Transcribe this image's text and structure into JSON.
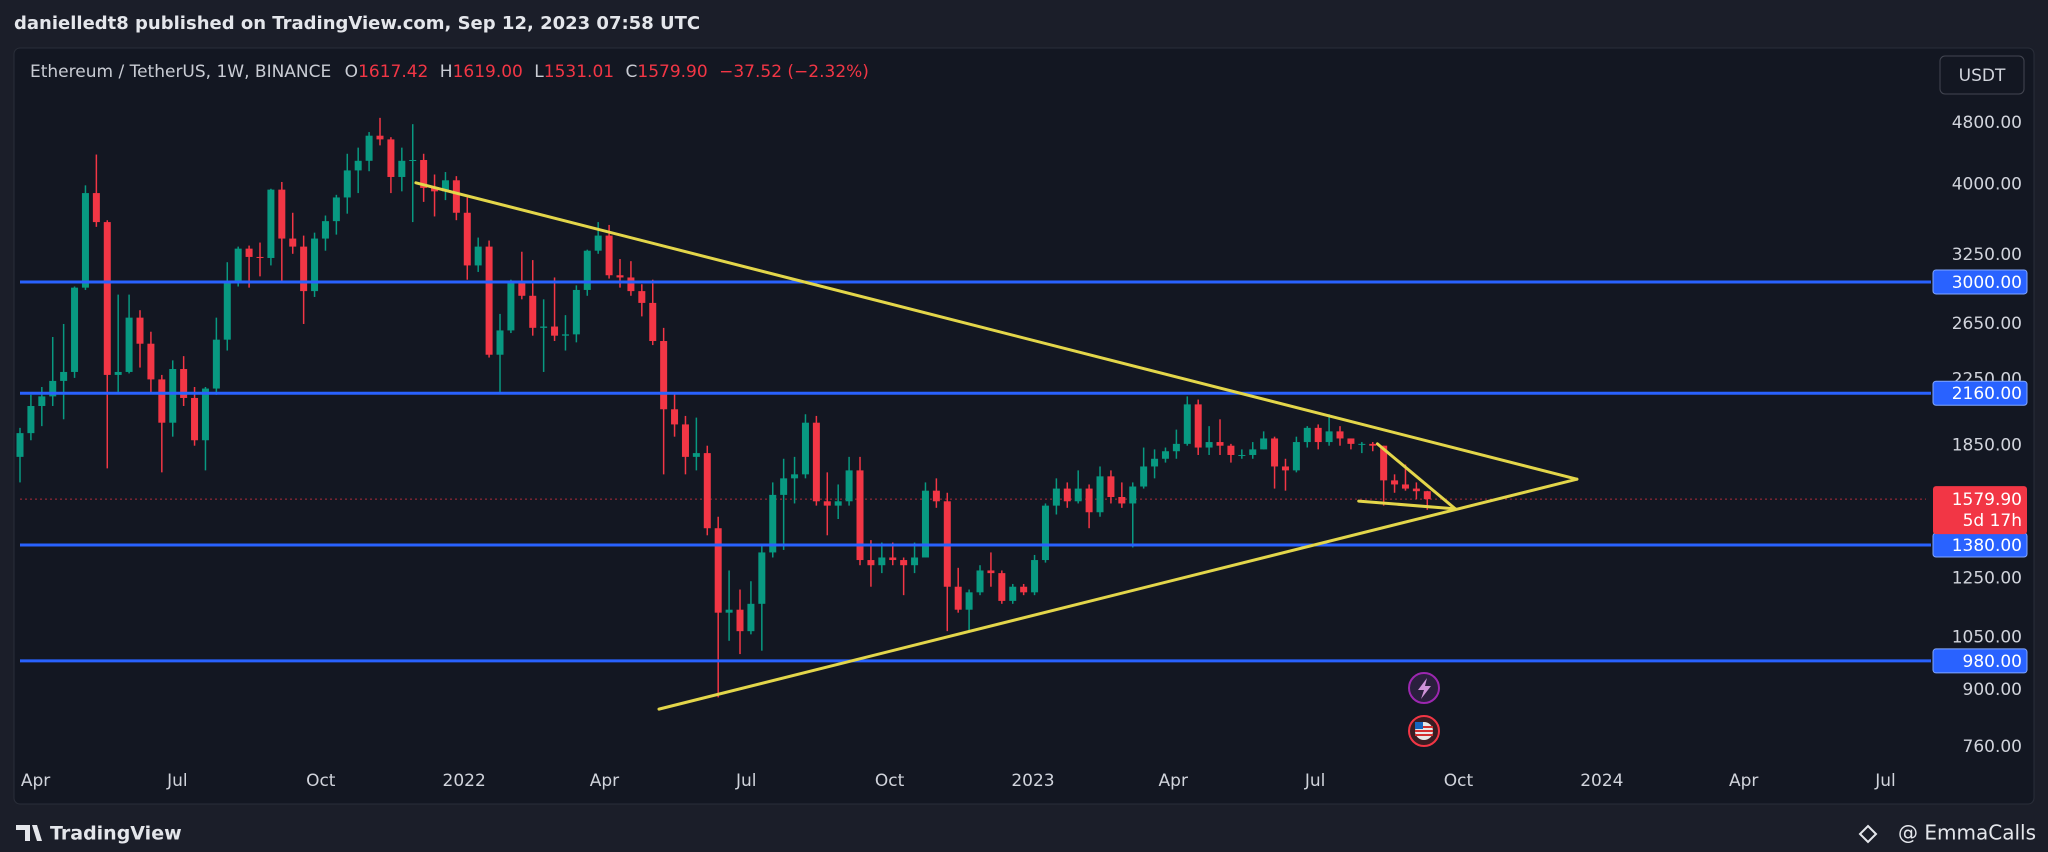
{
  "header": "danielledt8 published on TradingView.com, Sep 12, 2023 07:58 UTC",
  "footer": "TradingView",
  "watermark": "@ EmmaCalls",
  "chart_data": {
    "type": "candlestick",
    "title": "Ethereum / TetherUS, 1W, BINANCE",
    "currency_button": "USDT",
    "legend": {
      "keys": [
        "O",
        "H",
        "L",
        "C"
      ],
      "values": [
        "1617.42",
        "1619.00",
        "1531.01",
        "1579.90"
      ],
      "change": "−37.52 (−2.32%)"
    },
    "up_color": "#089981",
    "down_color": "#f23645",
    "log_scale": true,
    "grid": false,
    "xlim": [
      "2021-03-22",
      "2024-07-27"
    ],
    "xticks": [
      {
        "value": "2021-04-01",
        "label": "Apr"
      },
      {
        "value": "2021-07-01",
        "label": "Jul"
      },
      {
        "value": "2021-10-01",
        "label": "Oct"
      },
      {
        "value": "2022-01-01",
        "label": "2022"
      },
      {
        "value": "2022-04-01",
        "label": "Apr"
      },
      {
        "value": "2022-07-01",
        "label": "Jul"
      },
      {
        "value": "2022-10-01",
        "label": "Oct"
      },
      {
        "value": "2023-01-01",
        "label": "2023"
      },
      {
        "value": "2023-04-01",
        "label": "Apr"
      },
      {
        "value": "2023-07-01",
        "label": "Jul"
      },
      {
        "value": "2023-10-01",
        "label": "Oct"
      },
      {
        "value": "2024-01-01",
        "label": "2024"
      },
      {
        "value": "2024-04-01",
        "label": "Apr"
      },
      {
        "value": "2024-07-01",
        "label": "Jul"
      }
    ],
    "ylim": [
      650,
      5950
    ],
    "yticks": [
      {
        "value": 4800,
        "label": "4800.00"
      },
      {
        "value": 4000,
        "label": "4000.00"
      },
      {
        "value": 3250,
        "label": "3250.00"
      },
      {
        "value": 2650,
        "label": "2650.00"
      },
      {
        "value": 2250,
        "label": "2250.00"
      },
      {
        "value": 1850,
        "label": "1850.00"
      },
      {
        "value": 1250,
        "label": "1250.00"
      },
      {
        "value": 1050,
        "label": "1050.00"
      },
      {
        "value": 900,
        "label": "900.00"
      },
      {
        "value": 760,
        "label": "760.00"
      }
    ],
    "hlines": {
      "color": "#2962ff",
      "levels": [
        {
          "value": 3000,
          "label": "3000.00"
        },
        {
          "value": 2160,
          "label": "2160.00"
        },
        {
          "value": 1380,
          "label": "1380.00"
        },
        {
          "value": 980,
          "label": "980.00"
        }
      ]
    },
    "last_price": {
      "value": 1579.9,
      "label": "1579.90",
      "countdown": "5d 17h"
    },
    "trendlines": {
      "color": "#e3d64a",
      "lines": [
        [
          [
            "2021-12-01",
            4020
          ],
          [
            "2023-12-16",
            1676
          ]
        ],
        [
          [
            "2022-05-06",
            850
          ],
          [
            "2023-12-16",
            1676
          ]
        ],
        [
          [
            "2023-08-10",
            1860
          ],
          [
            "2023-09-29",
            1535
          ]
        ],
        [
          [
            "2023-07-29",
            1571
          ],
          [
            "2023-09-29",
            1535
          ]
        ]
      ]
    },
    "x": [
      "2021-03-22",
      "2021-03-29",
      "2021-04-05",
      "2021-04-12",
      "2021-04-19",
      "2021-04-26",
      "2021-05-03",
      "2021-05-10",
      "2021-05-17",
      "2021-05-24",
      "2021-05-31",
      "2021-06-07",
      "2021-06-14",
      "2021-06-21",
      "2021-06-28",
      "2021-07-05",
      "2021-07-12",
      "2021-07-19",
      "2021-07-26",
      "2021-08-02",
      "2021-08-09",
      "2021-08-16",
      "2021-08-23",
      "2021-08-30",
      "2021-09-06",
      "2021-09-13",
      "2021-09-20",
      "2021-09-27",
      "2021-10-04",
      "2021-10-11",
      "2021-10-18",
      "2021-10-25",
      "2021-11-01",
      "2021-11-08",
      "2021-11-15",
      "2021-11-22",
      "2021-11-29",
      "2021-12-06",
      "2021-12-13",
      "2021-12-20",
      "2021-12-27",
      "2022-01-03",
      "2022-01-10",
      "2022-01-17",
      "2022-01-24",
      "2022-01-31",
      "2022-02-07",
      "2022-02-14",
      "2022-02-21",
      "2022-02-28",
      "2022-03-07",
      "2022-03-14",
      "2022-03-21",
      "2022-03-28",
      "2022-04-04",
      "2022-04-11",
      "2022-04-18",
      "2022-04-25",
      "2022-05-02",
      "2022-05-09",
      "2022-05-16",
      "2022-05-23",
      "2022-05-30",
      "2022-06-06",
      "2022-06-13",
      "2022-06-20",
      "2022-06-27",
      "2022-07-04",
      "2022-07-11",
      "2022-07-18",
      "2022-07-25",
      "2022-08-01",
      "2022-08-08",
      "2022-08-15",
      "2022-08-22",
      "2022-08-29",
      "2022-09-05",
      "2022-09-12",
      "2022-09-19",
      "2022-09-26",
      "2022-10-03",
      "2022-10-10",
      "2022-10-17",
      "2022-10-24",
      "2022-10-31",
      "2022-11-07",
      "2022-11-14",
      "2022-11-21",
      "2022-11-28",
      "2022-12-05",
      "2022-12-12",
      "2022-12-19",
      "2022-12-26",
      "2023-01-02",
      "2023-01-09",
      "2023-01-16",
      "2023-01-23",
      "2023-01-30",
      "2023-02-06",
      "2023-02-13",
      "2023-02-20",
      "2023-02-27",
      "2023-03-06",
      "2023-03-13",
      "2023-03-20",
      "2023-03-27",
      "2023-04-03",
      "2023-04-10",
      "2023-04-17",
      "2023-04-24",
      "2023-05-01",
      "2023-05-08",
      "2023-05-15",
      "2023-05-22",
      "2023-05-29",
      "2023-06-05",
      "2023-06-12",
      "2023-06-19",
      "2023-06-26",
      "2023-07-03",
      "2023-07-10",
      "2023-07-17",
      "2023-07-24",
      "2023-07-31",
      "2023-08-07",
      "2023-08-14",
      "2023-08-21",
      "2023-08-28",
      "2023-09-04",
      "2023-09-11"
    ],
    "candles": [
      [
        1790,
        1950,
        1660,
        1920
      ],
      [
        1920,
        2150,
        1880,
        2080
      ],
      [
        2080,
        2200,
        1960,
        2140
      ],
      [
        2140,
        2550,
        2080,
        2240
      ],
      [
        2240,
        2650,
        2000,
        2300
      ],
      [
        2300,
        2960,
        2260,
        2950
      ],
      [
        2950,
        3990,
        2930,
        3900
      ],
      [
        3900,
        4370,
        3530,
        3580
      ],
      [
        3580,
        3600,
        1730,
        2280
      ],
      [
        2280,
        2890,
        2160,
        2300
      ],
      [
        2300,
        2890,
        2290,
        2700
      ],
      [
        2700,
        2760,
        2330,
        2500
      ],
      [
        2500,
        2590,
        2160,
        2250
      ],
      [
        2250,
        2280,
        1710,
        1980
      ],
      [
        1980,
        2380,
        1900,
        2320
      ],
      [
        2320,
        2410,
        2080,
        2130
      ],
      [
        2130,
        2200,
        1850,
        1880
      ],
      [
        1880,
        2200,
        1720,
        2190
      ],
      [
        2190,
        2700,
        2150,
        2530
      ],
      [
        2530,
        3180,
        2450,
        3010
      ],
      [
        3010,
        3330,
        2960,
        3310
      ],
      [
        3310,
        3340,
        2950,
        3230
      ],
      [
        3230,
        3370,
        3050,
        3220
      ],
      [
        3220,
        3950,
        3150,
        3940
      ],
      [
        3940,
        4030,
        3010,
        3410
      ],
      [
        3410,
        3680,
        3260,
        3330
      ],
      [
        3330,
        3440,
        2650,
        2920
      ],
      [
        2920,
        3470,
        2870,
        3410
      ],
      [
        3410,
        3650,
        3290,
        3590
      ],
      [
        3590,
        3880,
        3450,
        3850
      ],
      [
        3850,
        4380,
        3670,
        4170
      ],
      [
        4170,
        4460,
        3900,
        4290
      ],
      [
        4290,
        4670,
        4160,
        4620
      ],
      [
        4620,
        4870,
        4490,
        4570
      ],
      [
        4570,
        4600,
        3900,
        4090
      ],
      [
        4090,
        4460,
        3920,
        4290
      ],
      [
        4290,
        4780,
        3580,
        4300
      ],
      [
        4300,
        4380,
        3800,
        3960
      ],
      [
        3960,
        4120,
        3640,
        3920
      ],
      [
        3920,
        4150,
        3820,
        4050
      ],
      [
        4050,
        4100,
        3600,
        3680
      ],
      [
        3680,
        3850,
        3020,
        3150
      ],
      [
        3150,
        3420,
        3090,
        3330
      ],
      [
        3330,
        3390,
        2400,
        2420
      ],
      [
        2420,
        2730,
        2160,
        2600
      ],
      [
        2600,
        3020,
        2580,
        3000
      ],
      [
        3000,
        3280,
        2850,
        2880
      ],
      [
        2880,
        3200,
        2560,
        2620
      ],
      [
        2620,
        2850,
        2300,
        2630
      ],
      [
        2630,
        3040,
        2520,
        2560
      ],
      [
        2560,
        2720,
        2450,
        2570
      ],
      [
        2570,
        2970,
        2510,
        2930
      ],
      [
        2930,
        3300,
        2880,
        3290
      ],
      [
        3290,
        3580,
        3260,
        3440
      ],
      [
        3440,
        3550,
        3030,
        3060
      ],
      [
        3060,
        3210,
        2950,
        3040
      ],
      [
        3040,
        3190,
        2880,
        2920
      ],
      [
        2920,
        2980,
        2710,
        2820
      ],
      [
        2820,
        3020,
        2490,
        2520
      ],
      [
        2520,
        2620,
        1700,
        2060
      ],
      [
        2060,
        2160,
        1900,
        1970
      ],
      [
        1970,
        2020,
        1700,
        1790
      ],
      [
        1790,
        2010,
        1720,
        1810
      ],
      [
        1810,
        1850,
        1420,
        1450
      ],
      [
        1450,
        1500,
        880,
        1130
      ],
      [
        1130,
        1280,
        1040,
        1140
      ],
      [
        1140,
        1210,
        1000,
        1070
      ],
      [
        1070,
        1240,
        1060,
        1160
      ],
      [
        1160,
        1380,
        1010,
        1350
      ],
      [
        1350,
        1660,
        1330,
        1600
      ],
      [
        1600,
        1780,
        1360,
        1680
      ],
      [
        1680,
        1790,
        1560,
        1700
      ],
      [
        1700,
        2030,
        1680,
        1980
      ],
      [
        1980,
        2020,
        1550,
        1570
      ],
      [
        1570,
        1710,
        1420,
        1550
      ],
      [
        1550,
        1650,
        1490,
        1570
      ],
      [
        1570,
        1790,
        1550,
        1720
      ],
      [
        1720,
        1790,
        1300,
        1320
      ],
      [
        1320,
        1400,
        1220,
        1300
      ],
      [
        1300,
        1390,
        1270,
        1330
      ],
      [
        1330,
        1390,
        1300,
        1320
      ],
      [
        1320,
        1330,
        1190,
        1300
      ],
      [
        1300,
        1390,
        1270,
        1330
      ],
      [
        1330,
        1660,
        1330,
        1620
      ],
      [
        1620,
        1680,
        1540,
        1570
      ],
      [
        1570,
        1610,
        1070,
        1220
      ],
      [
        1220,
        1290,
        1130,
        1140
      ],
      [
        1140,
        1210,
        1070,
        1200
      ],
      [
        1200,
        1300,
        1190,
        1280
      ],
      [
        1280,
        1350,
        1220,
        1270
      ],
      [
        1270,
        1280,
        1160,
        1170
      ],
      [
        1170,
        1230,
        1160,
        1220
      ],
      [
        1220,
        1230,
        1190,
        1200
      ],
      [
        1200,
        1340,
        1190,
        1320
      ],
      [
        1320,
        1560,
        1310,
        1550
      ],
      [
        1550,
        1680,
        1510,
        1630
      ],
      [
        1630,
        1660,
        1540,
        1570
      ],
      [
        1570,
        1720,
        1560,
        1630
      ],
      [
        1630,
        1650,
        1450,
        1520
      ],
      [
        1520,
        1740,
        1500,
        1690
      ],
      [
        1690,
        1720,
        1560,
        1590
      ],
      [
        1590,
        1660,
        1540,
        1560
      ],
      [
        1560,
        1660,
        1370,
        1640
      ],
      [
        1640,
        1840,
        1630,
        1740
      ],
      [
        1740,
        1830,
        1680,
        1780
      ],
      [
        1780,
        1840,
        1760,
        1820
      ],
      [
        1820,
        1940,
        1780,
        1860
      ],
      [
        1860,
        2140,
        1850,
        2090
      ],
      [
        2090,
        2120,
        1800,
        1840
      ],
      [
        1840,
        1960,
        1800,
        1870
      ],
      [
        1870,
        2000,
        1800,
        1850
      ],
      [
        1850,
        1860,
        1760,
        1800
      ],
      [
        1800,
        1830,
        1780,
        1800
      ],
      [
        1800,
        1870,
        1780,
        1830
      ],
      [
        1830,
        1930,
        1830,
        1890
      ],
      [
        1890,
        1900,
        1630,
        1740
      ],
      [
        1740,
        1780,
        1620,
        1720
      ],
      [
        1720,
        1900,
        1710,
        1870
      ],
      [
        1870,
        1960,
        1840,
        1950
      ],
      [
        1950,
        1970,
        1830,
        1870
      ],
      [
        1870,
        2030,
        1850,
        1930
      ],
      [
        1930,
        1960,
        1850,
        1890
      ],
      [
        1890,
        1890,
        1830,
        1860
      ],
      [
        1860,
        1870,
        1810,
        1860
      ],
      [
        1860,
        1870,
        1820,
        1850
      ],
      [
        1850,
        1850,
        1550,
        1670
      ],
      [
        1670,
        1700,
        1610,
        1650
      ],
      [
        1650,
        1750,
        1620,
        1630
      ],
      [
        1630,
        1660,
        1580,
        1617.42
      ],
      [
        1617.42,
        1619,
        1531.01,
        1579.9
      ]
    ]
  }
}
